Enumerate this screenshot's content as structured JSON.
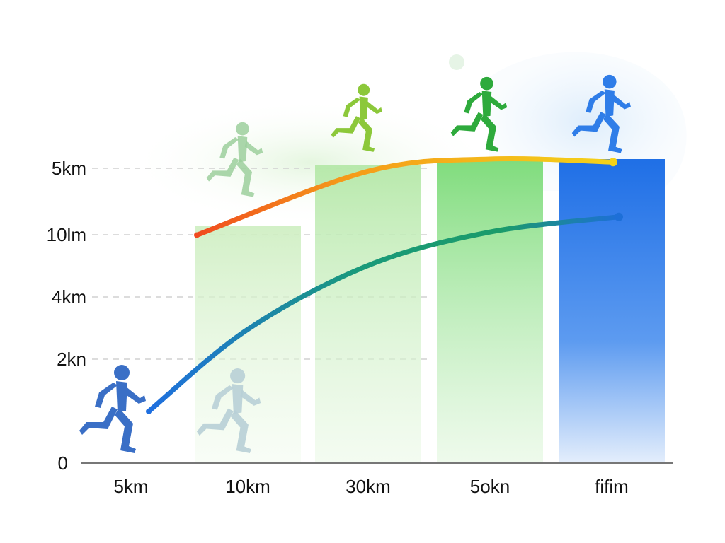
{
  "chart_data": {
    "type": "bar",
    "title": "",
    "xlabel": "",
    "ylabel": "",
    "categories": [
      "5km",
      "10km",
      "30km",
      "5okn",
      "fifim"
    ],
    "y_tick_labels": [
      "5km",
      "10lm",
      "4km",
      "2kn",
      "0"
    ],
    "values": [
      null,
      3.9,
      4.9,
      5.0,
      5.0
    ],
    "ylim": [
      0,
      5.2
    ],
    "grid": "dashed horizontal",
    "series": [
      {
        "values": [
          null,
          3.75,
          4.8,
          5.0,
          4.95
        ],
        "color": "#f08a1e"
      },
      {
        "values": [
          0.85,
          2.2,
          3.25,
          3.8,
          4.05
        ],
        "color": "#1f86d0"
      }
    ],
    "colors": {
      "bar_light_green": "#c9eebb",
      "bar_green": "#8fe08a",
      "bar_blue": "#2f7de8",
      "runner_blue": "#3a6fc6",
      "runner_green": "#2eaa3c",
      "runner_lime": "#8cc83a",
      "runner_faded": "#9ccf9c",
      "runner_ghost": "#b8cfd6",
      "axis": "#777777",
      "grid": "#d0d0d0"
    },
    "icons": [
      "runner-icon"
    ]
  }
}
